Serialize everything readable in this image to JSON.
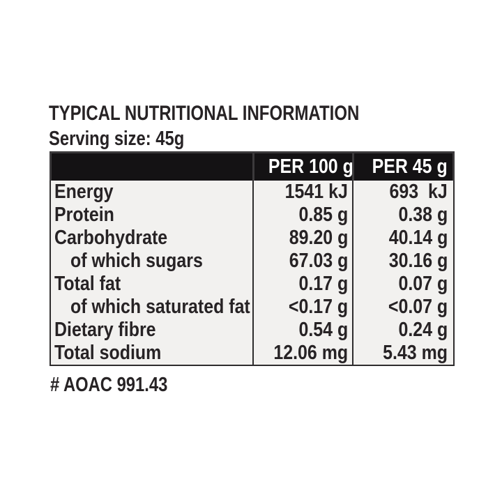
{
  "label": {
    "title": "TYPICAL NUTRITIONAL INFORMATION",
    "serving_size": "Serving size: 45g",
    "footnote": "# AOAC 991.43"
  },
  "table": {
    "columns": [
      "",
      "PER 100 g",
      "PER 45 g"
    ],
    "rows": [
      {
        "label": "Energy",
        "per_100g": "1541 kJ",
        "per_45g": "693  kJ"
      },
      {
        "label": "Protein",
        "per_100g": "0.85 g",
        "per_45g": "0.38 g"
      },
      {
        "label": "Carbohydrate",
        "per_100g": "89.20 g",
        "per_45g": "40.14 g"
      },
      {
        "label": "of which sugars",
        "per_100g": "67.03 g",
        "per_45g": "30.16 g"
      },
      {
        "label": "Total fat",
        "per_100g": "0.17 g",
        "per_45g": "0.07 g"
      },
      {
        "label": "of which saturated fat",
        "per_100g": "<0.17 g",
        "per_45g": "<0.07 g"
      },
      {
        "label": "Dietary fibre",
        "per_100g": "0.54 g",
        "per_45g": "0.24 g"
      },
      {
        "label": "Total sodium",
        "per_100g": "12.06 mg",
        "per_45g": "5.43 mg"
      }
    ]
  },
  "colors": {
    "page_bg": "#ffffff",
    "text": "#272325",
    "header_bg": "#141214",
    "header_outline": "#3c3a3c",
    "header_text": "#ffffff",
    "table_bg": "#f2f1ef",
    "border": "#2e2c2d"
  }
}
